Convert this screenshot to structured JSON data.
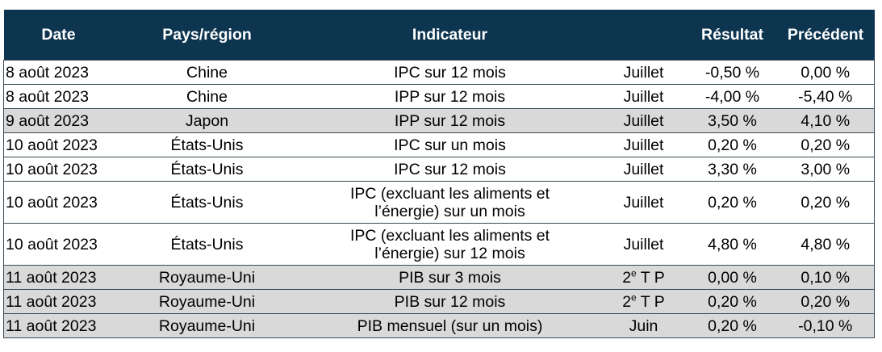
{
  "table": {
    "header": {
      "date": "Date",
      "country": "Pays/région",
      "indicator": "Indicateur",
      "result": "Résultat",
      "previous": "Précédent"
    },
    "rows": [
      {
        "date": "8 août 2023",
        "country": "Chine",
        "indicator": [
          "IPC sur 12 mois"
        ],
        "period": [
          "Juillet"
        ],
        "result": "-0,50 %",
        "previous": "0,00 %",
        "shaded": false
      },
      {
        "date": "8 août 2023",
        "country": "Chine",
        "indicator": [
          "IPP sur 12 mois"
        ],
        "period": [
          "Juillet"
        ],
        "result": "-4,00 %",
        "previous": "-5,40 %",
        "shaded": false
      },
      {
        "date": "9 août 2023",
        "country": "Japon",
        "indicator": [
          "IPP sur 12 mois"
        ],
        "period": [
          "Juillet"
        ],
        "result": "3,50 %",
        "previous": "4,10 %",
        "shaded": true
      },
      {
        "date": "10 août 2023",
        "country": "États-Unis",
        "indicator": [
          "IPC sur un mois"
        ],
        "period": [
          "Juillet"
        ],
        "result": "0,20 %",
        "previous": "0,20 %",
        "shaded": false
      },
      {
        "date": "10 août 2023",
        "country": "États-Unis",
        "indicator": [
          "IPC sur 12 mois"
        ],
        "period": [
          "Juillet"
        ],
        "result": "3,30 %",
        "previous": "3,00 %",
        "shaded": false
      },
      {
        "date": "10 août 2023",
        "country": "États-Unis",
        "indicator": [
          "IPC (excluant les aliments et",
          "l’énergie) sur un mois"
        ],
        "period": [
          "Juillet"
        ],
        "result": "0,20 %",
        "previous": "0,20 %",
        "shaded": false
      },
      {
        "date": "10 août 2023",
        "country": "États-Unis",
        "indicator": [
          "IPC (excluant les aliments et",
          "l’énergie) sur 12 mois"
        ],
        "period": [
          "Juillet"
        ],
        "result": "4,80 %",
        "previous": "4,80 %",
        "shaded": false
      },
      {
        "date": "11 août 2023",
        "country": "Royaume-Uni",
        "indicator": [
          "PIB sur 3 mois"
        ],
        "period": [
          "2",
          "e",
          " T P"
        ],
        "result": "0,00 %",
        "previous": "0,10 %",
        "shaded": true
      },
      {
        "date": "11 août 2023",
        "country": "Royaume-Uni",
        "indicator": [
          "PIB sur 12 mois"
        ],
        "period": [
          "2",
          "e",
          " T P"
        ],
        "result": "0,20 %",
        "previous": "0,20 %",
        "shaded": true
      },
      {
        "date": "11 août 2023",
        "country": "Royaume-Uni",
        "indicator": [
          "PIB mensuel (sur un mois)"
        ],
        "period": [
          "Juin"
        ],
        "result": "0,20 %",
        "previous": "-0,10 %",
        "shaded": true
      }
    ]
  }
}
